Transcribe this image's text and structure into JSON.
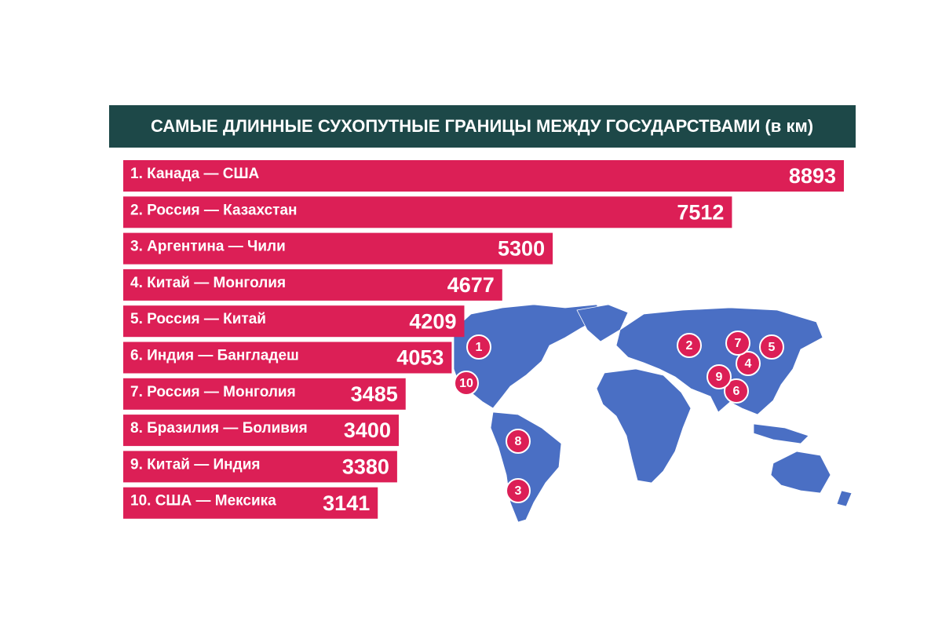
{
  "chart_data": {
    "type": "bar",
    "orientation": "horizontal",
    "title": "САМЫЕ ДЛИННЫЕ СУХОПУТНЫЕ ГРАНИЦЫ МЕЖДУ ГОСУДАРСТВАМИ (в км)",
    "categories": [
      "1. Канада — США",
      "2. Россия — Казахстан",
      "3. Аргентина — Чили",
      "4. Китай — Монголия",
      "5. Россия — Китай",
      "6. Индия — Бангладеш",
      "7. Россия — Монголия",
      "8. Бразилия — Боливия",
      "9. Китай — Индия",
      "10. США — Мексика"
    ],
    "values": [
      8893,
      7512,
      5300,
      4677,
      4209,
      4053,
      3485,
      3400,
      3380,
      3141
    ],
    "color": "#dc1f56",
    "title_background": "#1d4848",
    "map_color": "#4a6fc4",
    "map_markers": [
      "1",
      "2",
      "3",
      "4",
      "5",
      "6",
      "7",
      "8",
      "9",
      "10"
    ]
  }
}
